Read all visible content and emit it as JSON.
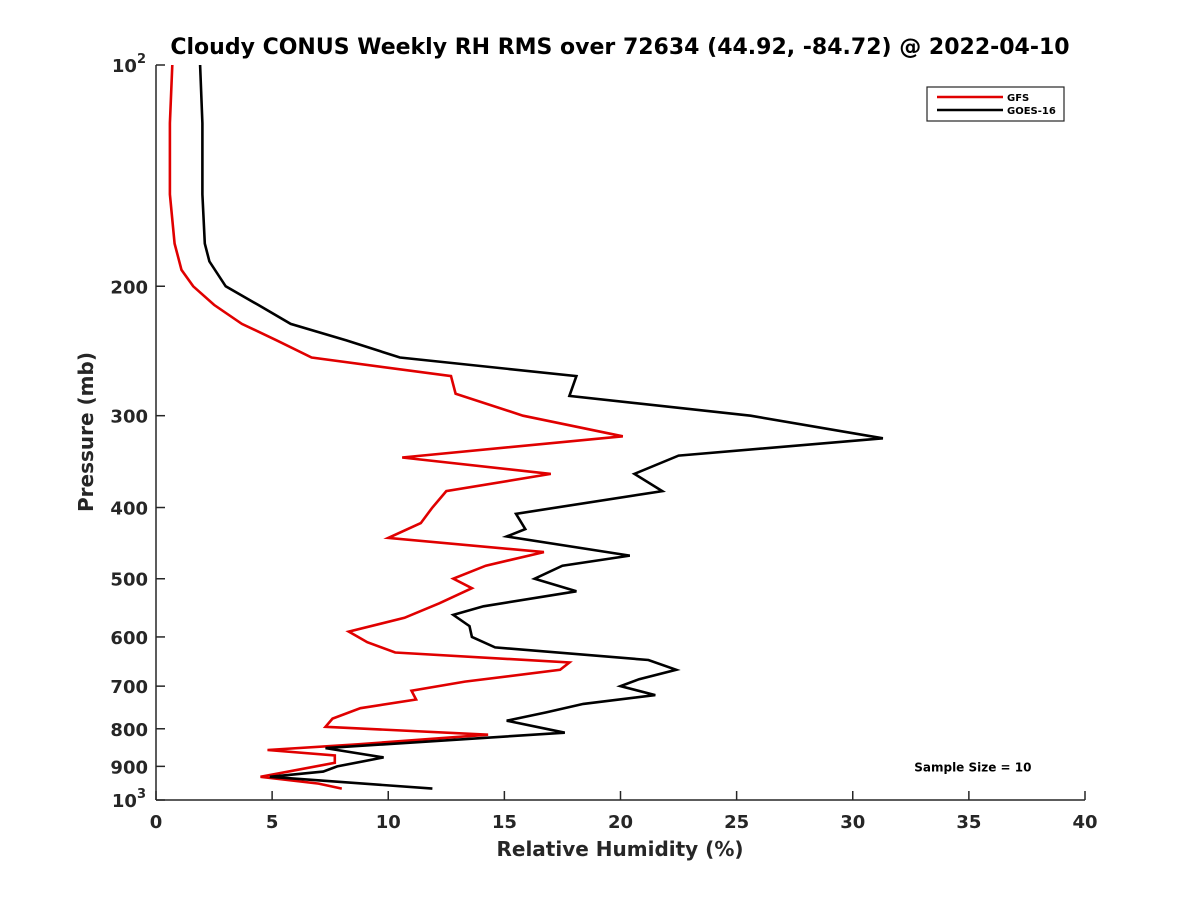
{
  "chart_data": {
    "type": "line",
    "title": "Cloudy CONUS Weekly RH RMS over 72634 (44.92, -84.72) @ 2022-04-10",
    "xlabel": "Relative Humidity (%)",
    "ylabel": "Pressure (mb)",
    "xlim": [
      0,
      40
    ],
    "ylim": [
      100,
      1000
    ],
    "yscale": "log",
    "y_reversed": true,
    "grid": false,
    "legend_placement": "top-right",
    "x_ticks": [
      "0",
      "5",
      "10",
      "15",
      "20",
      "25",
      "30",
      "35",
      "40"
    ],
    "y_ticks": [
      {
        "value": 100,
        "base": "10",
        "exp": "2"
      },
      {
        "value": 200,
        "label": "200"
      },
      {
        "value": 300,
        "label": "300"
      },
      {
        "value": 400,
        "label": "400"
      },
      {
        "value": 500,
        "label": "500"
      },
      {
        "value": 600,
        "label": "600"
      },
      {
        "value": 700,
        "label": "700"
      },
      {
        "value": 800,
        "label": "800"
      },
      {
        "value": 900,
        "label": "900"
      },
      {
        "value": 1000,
        "base": "10",
        "exp": "3"
      }
    ],
    "series": [
      {
        "name": "GFS",
        "color": "#e00000",
        "points": [
          [
            0.7,
            100
          ],
          [
            0.6,
            120
          ],
          [
            0.6,
            150
          ],
          [
            0.8,
            175
          ],
          [
            1.1,
            190
          ],
          [
            1.6,
            200
          ],
          [
            2.5,
            212
          ],
          [
            3.7,
            225
          ],
          [
            5.2,
            237
          ],
          [
            6.7,
            250
          ],
          [
            12.7,
            265
          ],
          [
            12.9,
            280
          ],
          [
            15.8,
            300
          ],
          [
            20.1,
            320
          ],
          [
            10.6,
            342
          ],
          [
            17.0,
            360
          ],
          [
            12.5,
            380
          ],
          [
            11.9,
            400
          ],
          [
            11.4,
            420
          ],
          [
            10.0,
            440
          ],
          [
            16.7,
            460
          ],
          [
            14.2,
            480
          ],
          [
            12.8,
            500
          ],
          [
            13.6,
            515
          ],
          [
            12.2,
            540
          ],
          [
            10.7,
            565
          ],
          [
            8.3,
            590
          ],
          [
            9.1,
            610
          ],
          [
            10.3,
            630
          ],
          [
            17.8,
            650
          ],
          [
            17.4,
            665
          ],
          [
            13.3,
            690
          ],
          [
            11.0,
            710
          ],
          [
            11.2,
            730
          ],
          [
            8.8,
            750
          ],
          [
            7.6,
            775
          ],
          [
            7.3,
            795
          ],
          [
            14.3,
            815
          ],
          [
            8.7,
            840
          ],
          [
            4.8,
            855
          ],
          [
            7.7,
            870
          ],
          [
            7.7,
            890
          ],
          [
            4.5,
            930
          ],
          [
            7.0,
            950
          ],
          [
            8.0,
            965
          ]
        ]
      },
      {
        "name": "GOES-16",
        "color": "#000000",
        "points": [
          [
            1.9,
            100
          ],
          [
            2.0,
            120
          ],
          [
            2.0,
            150
          ],
          [
            2.1,
            175
          ],
          [
            2.3,
            185
          ],
          [
            3.0,
            200
          ],
          [
            4.4,
            212
          ],
          [
            5.8,
            225
          ],
          [
            8.2,
            237
          ],
          [
            10.5,
            250
          ],
          [
            18.1,
            265
          ],
          [
            17.8,
            282
          ],
          [
            25.6,
            300
          ],
          [
            31.3,
            322
          ],
          [
            22.5,
            340
          ],
          [
            20.6,
            360
          ],
          [
            21.8,
            380
          ],
          [
            15.5,
            408
          ],
          [
            15.9,
            428
          ],
          [
            15.1,
            438
          ],
          [
            20.4,
            465
          ],
          [
            17.5,
            480
          ],
          [
            16.3,
            500
          ],
          [
            18.1,
            520
          ],
          [
            14.1,
            545
          ],
          [
            12.8,
            560
          ],
          [
            13.5,
            580
          ],
          [
            13.6,
            600
          ],
          [
            14.6,
            620
          ],
          [
            21.2,
            645
          ],
          [
            22.4,
            665
          ],
          [
            20.8,
            685
          ],
          [
            20.0,
            700
          ],
          [
            21.5,
            720
          ],
          [
            18.4,
            740
          ],
          [
            16.8,
            760
          ],
          [
            15.1,
            780
          ],
          [
            17.6,
            810
          ],
          [
            7.3,
            850
          ],
          [
            9.8,
            875
          ],
          [
            7.8,
            900
          ],
          [
            7.2,
            915
          ],
          [
            4.9,
            930
          ],
          [
            11.9,
            965
          ]
        ]
      }
    ],
    "legend": [
      {
        "label": "GFS",
        "color": "#e00000"
      },
      {
        "label": "GOES-16",
        "color": "#000000"
      }
    ],
    "annotations": [
      {
        "text": "Sample Size = 10",
        "x": 35,
        "y": 900
      }
    ]
  }
}
